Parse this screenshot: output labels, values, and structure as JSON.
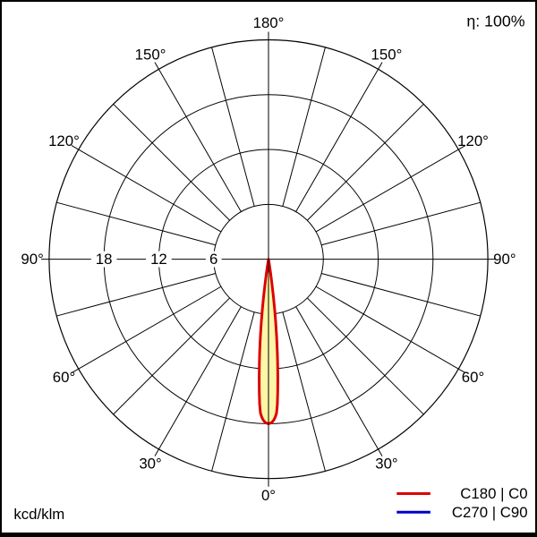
{
  "header": {
    "efficiency_label": "η: 100%"
  },
  "footer": {
    "unit_label": "kcd/klm"
  },
  "legend": {
    "items": [
      {
        "label": "C180 | C0",
        "color": "#dd0000"
      },
      {
        "label": "C270 | C90",
        "color": "#0000cc"
      }
    ]
  },
  "chart_data": {
    "type": "polar",
    "subtype": "luminous-intensity-distribution",
    "unit": "kcd/klm",
    "efficiency_percent": 100,
    "radial_ticks": [
      6,
      12,
      18,
      24
    ],
    "radial_tick_labels": [
      "6",
      "12",
      "18"
    ],
    "angle_step_label_deg": 30,
    "angle_labels": [
      "0°",
      "30°",
      "60°",
      "90°",
      "120°",
      "150°",
      "180°"
    ],
    "spoke_step_deg": 15,
    "max_intensity": 18,
    "peak_angle_deg": 0,
    "grid_color": "#000000",
    "series": [
      {
        "name": "C180 | C0",
        "color": "#dd0000",
        "fill": "#fcf6a8",
        "gamma_deg": [
          0,
          0.5,
          1,
          1.5,
          2,
          2.5,
          3,
          3.5,
          4,
          4.5,
          5,
          5.5,
          6,
          6.5,
          7,
          7.5,
          8,
          8.5,
          9,
          9.5,
          10
        ],
        "intensity": [
          18.0,
          17.95,
          17.9,
          17.75,
          17.55,
          17.25,
          16.85,
          15.9,
          14.5,
          13.0,
          11.5,
          10.0,
          8.5,
          7.0,
          5.5,
          4.0,
          2.6,
          1.6,
          0.9,
          0.4,
          0
        ]
      },
      {
        "name": "C270 | C90",
        "color": "#0000cc",
        "fill": "#fcf6a8",
        "gamma_deg": [
          0,
          0.5,
          1,
          1.5,
          2,
          2.5,
          3,
          3.5,
          4,
          4.5,
          5,
          5.5,
          6,
          6.5,
          7,
          7.5,
          8,
          8.5,
          9,
          9.5,
          10
        ],
        "intensity": [
          18.0,
          17.95,
          17.9,
          17.75,
          17.55,
          17.25,
          16.85,
          15.9,
          14.5,
          13.0,
          11.5,
          10.0,
          8.5,
          7.0,
          5.5,
          4.0,
          2.6,
          1.6,
          0.9,
          0.4,
          0
        ]
      }
    ]
  }
}
